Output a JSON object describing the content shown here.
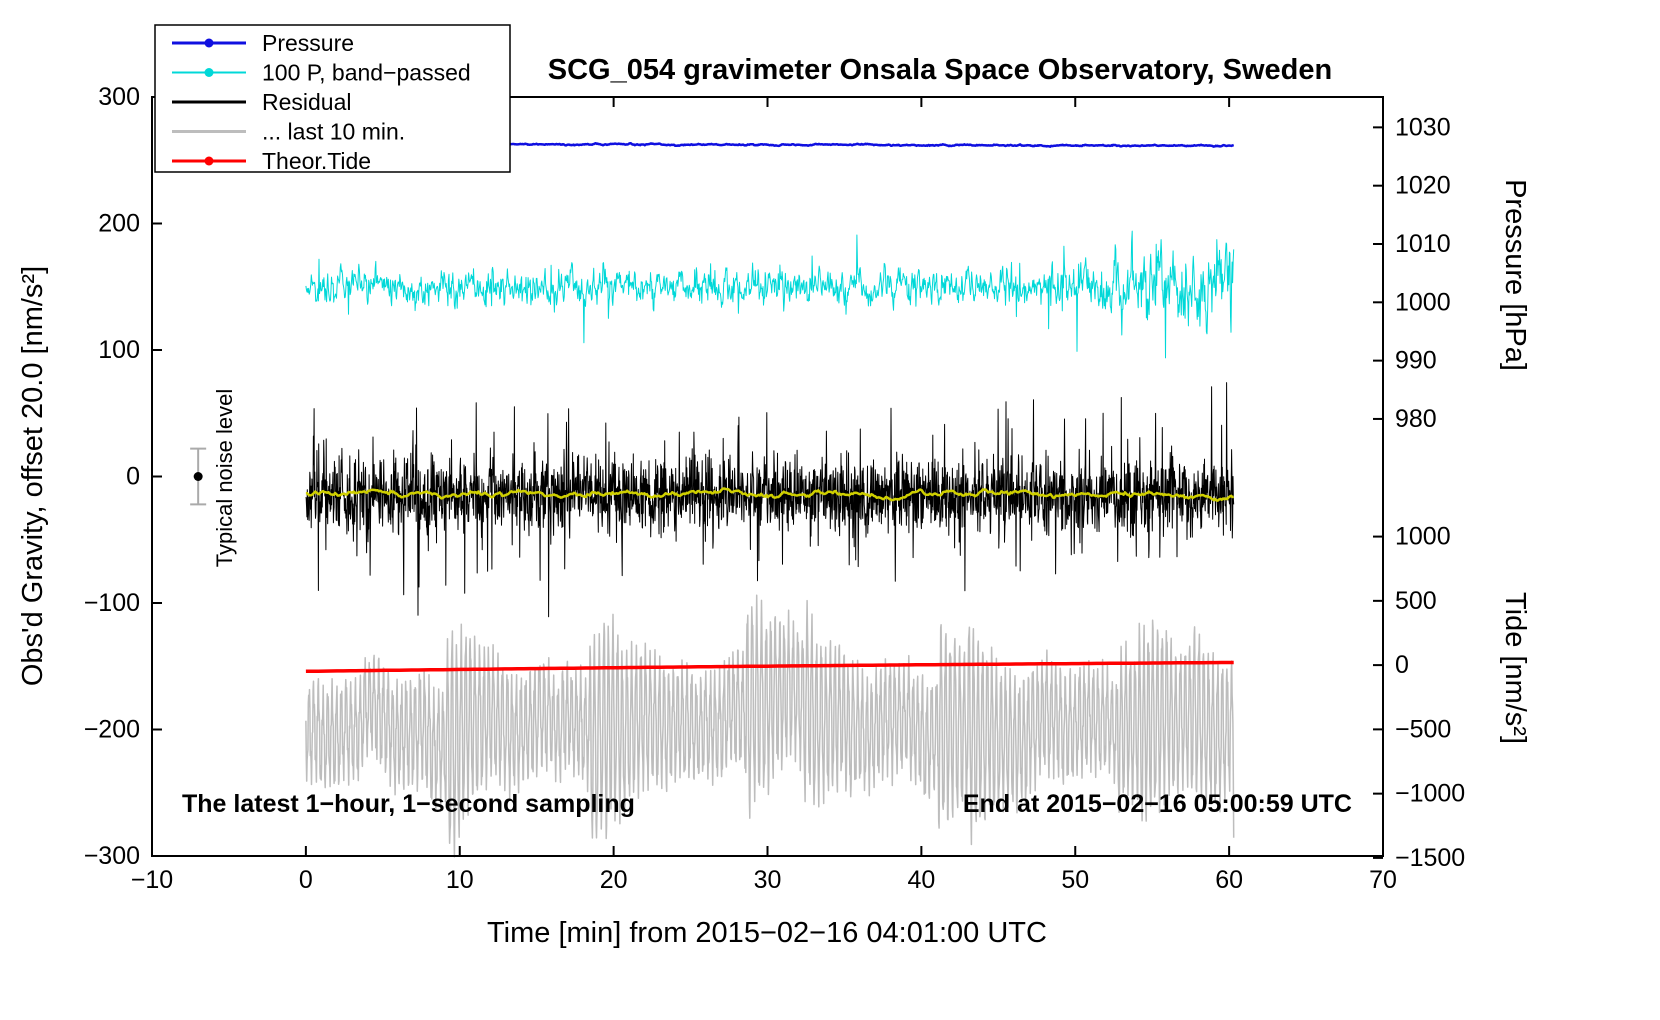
{
  "title": "SCG_054 gravimeter Onsala Space Observatory, Sweden",
  "annotations": {
    "noise_label": "Typical noise level",
    "bottom_left": "The latest 1−hour, 1−second sampling",
    "bottom_right": "End at 2015−02−16 05:00:59 UTC"
  },
  "legend": {
    "items": [
      {
        "label": "Pressure",
        "color": "#1010e0",
        "dot": true,
        "lw": 3
      },
      {
        "label": "100 P, band−passed",
        "color": "#00d8d8",
        "dot": true,
        "lw": 2
      },
      {
        "label": "Residual",
        "color": "#000000",
        "dot": false,
        "lw": 3
      },
      {
        "label": "... last 10 min.",
        "color": "#bdbdbd",
        "dot": false,
        "lw": 3
      },
      {
        "label": "Theor.Tide",
        "color": "#ff0000",
        "dot": true,
        "lw": 3
      }
    ]
  },
  "chart_data": {
    "type": "line",
    "title": "SCG_054 gravimeter Onsala Space Observatory, Sweden",
    "xlabel": "Time [min] from 2015−02−16 04:01:00 UTC",
    "ylabel_left": "Obs'd Gravity, offset 20.0 [nm/s²]",
    "ylabel_right_top": "Pressure [hPa]",
    "ylabel_right_bottom": "Tide [nm/s²]",
    "xlim": [
      -10,
      70
    ],
    "ylim_left": [
      -300,
      300
    ],
    "x_ticks": [
      -10,
      0,
      10,
      20,
      30,
      40,
      50,
      60,
      70
    ],
    "left_ticks": [
      -300,
      -200,
      -100,
      0,
      100,
      200,
      300
    ],
    "pressure_axis": {
      "label": "Pressure [hPa]",
      "ticks": [
        1030,
        1020,
        1010,
        1000,
        990,
        980
      ],
      "value_min": 980,
      "value_max": 1030,
      "left_min": 45.5,
      "left_max": 276
    },
    "tide_axis": {
      "label": "Tide [nm/s²]",
      "ticks": [
        1000,
        500,
        0,
        -500,
        -1000,
        -1500
      ],
      "value_min": -1500,
      "value_max": 1000,
      "left_min": -301.5,
      "left_max": -47.5
    },
    "noise_marker": {
      "x": -7,
      "y": 0,
      "half_height": 22,
      "label": "Typical noise level"
    },
    "grid": false,
    "legend_position": "top-left",
    "series": [
      {
        "name": "Pressure",
        "color": "#1010e0",
        "kind": "smooth-noise",
        "baseline": 263,
        "slope_per_min": -0.025,
        "noise_sigma": 0.35,
        "smooth": 6,
        "width": 2.5,
        "points": 1200,
        "seed": 11,
        "x_start": 0,
        "x_end": 60.3,
        "approx_value_hpa": 1027
      },
      {
        "name": "100 P, band-passed",
        "color": "#00d8d8",
        "kind": "bandpassed",
        "baseline": 150,
        "noise_sigma": 7,
        "tail_start": 47,
        "tail_gain": 1.8,
        "spike_prob": 0.015,
        "spike_max": 28,
        "width": 1,
        "points": 1700,
        "seed": 22,
        "x_start": 0,
        "x_end": 60.3
      },
      {
        "name": "Residual",
        "color": "#000000",
        "kind": "residual",
        "baseline": -15,
        "noise_sigma": 15,
        "spike_prob": 0.04,
        "spike_max": 70,
        "width": 1,
        "points": 2600,
        "seed": 33,
        "x_start": 0,
        "x_end": 60.3
      },
      {
        "name": "Residual smoothed",
        "color": "#cfcf00",
        "kind": "smooth-noise",
        "baseline": -14,
        "slope_per_min": 0,
        "noise_sigma": 1.6,
        "smooth": 10,
        "width": 2.5,
        "points": 700,
        "seed": 44,
        "x_start": 0,
        "x_end": 60.3
      },
      {
        "name": "... last 10 min.",
        "color": "#bdbdbd",
        "kind": "microseism",
        "baseline": -198,
        "amp_main": 30,
        "period_main": 0.3,
        "amp_fast": 9,
        "period_fast": 0.08,
        "wander_sigma": 10,
        "width": 1.5,
        "points": 2300,
        "seed": 55,
        "x_start": 0,
        "x_end": 60.3
      },
      {
        "name": "Theor.Tide",
        "color": "#ff0000",
        "kind": "tide",
        "start": -154,
        "end": -147,
        "width": 3.5,
        "points": 150,
        "seed": 66,
        "x_start": 0,
        "x_end": 60.3
      }
    ]
  }
}
